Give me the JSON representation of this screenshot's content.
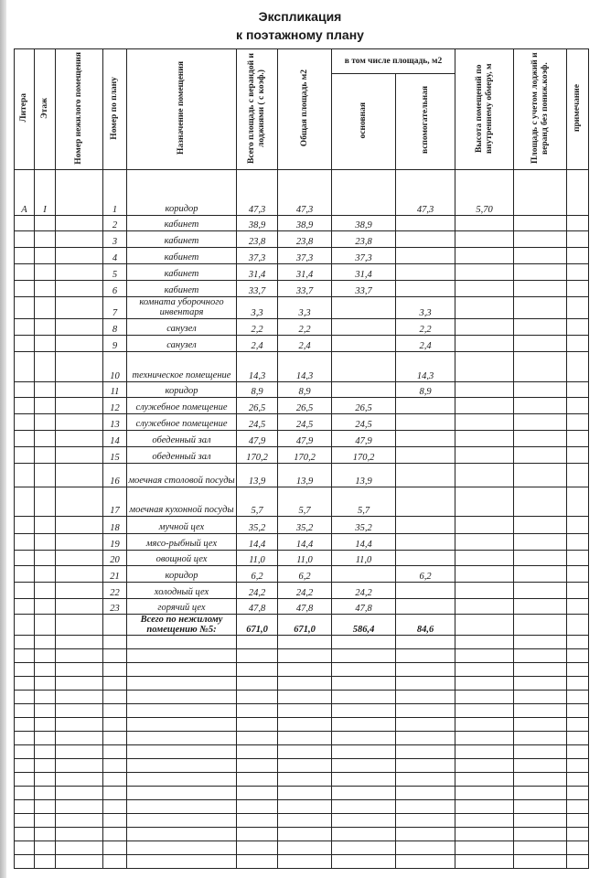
{
  "title_line1": "Экспликация",
  "title_line2": "к поэтажному плану",
  "headers": {
    "litera": "Литера",
    "floor": "Этаж",
    "premise_no": "Номер нежилого помещения",
    "plan_no": "Номер по плану",
    "purpose": "Назначение помещения",
    "total_area": "Всего площадь с верандой и лоджиями ( с коэф.)",
    "common_area": "Общая площадь м2",
    "incl_area": "в том числе площадь, м2",
    "main": "основная",
    "aux": "вспомогательная",
    "height": "Высота помещений по внутреннему обмеру, м",
    "loggia_area": "Площадь с учетом лоджий и веранд без пониж.коэф.",
    "note": "примечание"
  },
  "rows": [
    {
      "litera": "А",
      "floor": "I",
      "no": "1",
      "name": "коридор",
      "total": "47,3",
      "common": "47,3",
      "main": "",
      "aux": "47,3",
      "height": "5,70"
    },
    {
      "no": "2",
      "name": "кабинет",
      "total": "38,9",
      "common": "38,9",
      "main": "38,9",
      "aux": ""
    },
    {
      "no": "3",
      "name": "кабинет",
      "total": "23,8",
      "common": "23,8",
      "main": "23,8",
      "aux": ""
    },
    {
      "no": "4",
      "name": "кабинет",
      "total": "37,3",
      "common": "37,3",
      "main": "37,3",
      "aux": ""
    },
    {
      "no": "5",
      "name": "кабинет",
      "total": "31,4",
      "common": "31,4",
      "main": "31,4",
      "aux": ""
    },
    {
      "no": "6",
      "name": "кабинет",
      "total": "33,7",
      "common": "33,7",
      "main": "33,7",
      "aux": ""
    },
    {
      "no": "7",
      "name": "комната уборочного инвентаря",
      "total": "3,3",
      "common": "3,3",
      "main": "",
      "aux": "3,3"
    },
    {
      "no": "8",
      "name": "санузел",
      "total": "2,2",
      "common": "2,2",
      "main": "",
      "aux": "2,2"
    },
    {
      "no": "9",
      "name": "санузел",
      "total": "2,4",
      "common": "2,4",
      "main": "",
      "aux": "2,4"
    },
    {
      "no": "10",
      "name": "техническое помещение",
      "total": "14,3",
      "common": "14,3",
      "main": "",
      "aux": "14,3"
    },
    {
      "no": "11",
      "name": "коридор",
      "total": "8,9",
      "common": "8,9",
      "main": "",
      "aux": "8,9"
    },
    {
      "no": "12",
      "name": "служебное помещение",
      "total": "26,5",
      "common": "26,5",
      "main": "26,5",
      "aux": ""
    },
    {
      "no": "13",
      "name": "служебное помещение",
      "total": "24,5",
      "common": "24,5",
      "main": "24,5",
      "aux": ""
    },
    {
      "no": "14",
      "name": "обеденный зал",
      "total": "47,9",
      "common": "47,9",
      "main": "47,9",
      "aux": ""
    },
    {
      "no": "15",
      "name": "обеденный зал",
      "total": "170,2",
      "common": "170,2",
      "main": "170,2",
      "aux": ""
    },
    {
      "no": "16",
      "name": "моечная столовой посуды",
      "total": "13,9",
      "common": "13,9",
      "main": "13,9",
      "aux": ""
    },
    {
      "no": "17",
      "name": "моечная кухонной посуды",
      "total": "5,7",
      "common": "5,7",
      "main": "5,7",
      "aux": ""
    },
    {
      "no": "18",
      "name": "мучной цех",
      "total": "35,2",
      "common": "35,2",
      "main": "35,2",
      "aux": ""
    },
    {
      "no": "19",
      "name": "мясо-рыбный цех",
      "total": "14,4",
      "common": "14,4",
      "main": "14,4",
      "aux": ""
    },
    {
      "no": "20",
      "name": "овощной цех",
      "total": "11,0",
      "common": "11,0",
      "main": "11,0",
      "aux": ""
    },
    {
      "no": "21",
      "name": "коридор",
      "total": "6,2",
      "common": "6,2",
      "main": "",
      "aux": "6,2"
    },
    {
      "no": "22",
      "name": "холодный цех",
      "total": "24,2",
      "common": "24,2",
      "main": "24,2",
      "aux": ""
    },
    {
      "no": "23",
      "name": "горячий цех",
      "total": "47,8",
      "common": "47,8",
      "main": "47,8",
      "aux": ""
    }
  ],
  "total": {
    "label": "Всего по нежилому помещению №5:",
    "total": "671,0",
    "common": "671,0",
    "main": "586,4",
    "aux": "84,6"
  }
}
